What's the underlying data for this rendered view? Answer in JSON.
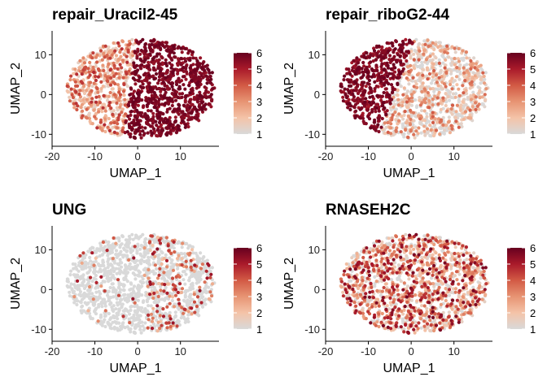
{
  "colors": {
    "scale_low": "#d9d9d9",
    "scale_stops": [
      "#d9d9d9",
      "#f4c3a8",
      "#e79473",
      "#d25a45",
      "#aa1a2a",
      "#67001f"
    ]
  },
  "chart_data": [
    {
      "type": "scatter",
      "title": "repair_Uracil2-45",
      "xlabel": "UMAP_1",
      "ylabel": "UMAP_2",
      "xlim": [
        -20,
        19
      ],
      "ylim": [
        -13,
        16
      ],
      "xticks": [
        -20,
        -10,
        0,
        10
      ],
      "yticks": [
        -10,
        0,
        10
      ],
      "legend": {
        "min": 1,
        "max": 6,
        "ticks": [
          1,
          2,
          3,
          4,
          5,
          6
        ],
        "placement": "right"
      },
      "pattern": "right-high",
      "description_values": {
        "left_region_level": 2.5,
        "right_region_level": 5.7
      }
    },
    {
      "type": "scatter",
      "title": "repair_riboG2-44",
      "xlabel": "UMAP_1",
      "ylabel": "UMAP_2",
      "xlim": [
        -20,
        19
      ],
      "ylim": [
        -13,
        16
      ],
      "xticks": [
        -20,
        -10,
        0,
        10
      ],
      "yticks": [
        -10,
        0,
        10
      ],
      "legend": {
        "min": 1,
        "max": 6,
        "ticks": [
          1,
          2,
          3,
          4,
          5,
          6
        ],
        "placement": "right"
      },
      "pattern": "left-high",
      "description_values": {
        "left_region_level": 5.7,
        "right_region_level": 2.0
      }
    },
    {
      "type": "scatter",
      "title": "UNG",
      "xlabel": "UMAP_1",
      "ylabel": "UMAP_2",
      "xlim": [
        -20,
        19
      ],
      "ylim": [
        -13,
        16
      ],
      "xticks": [
        -20,
        -10,
        0,
        10
      ],
      "yticks": [
        -10,
        0,
        10
      ],
      "legend": {
        "min": 1,
        "max": 6,
        "ticks": [
          1,
          2,
          3,
          4,
          5,
          6
        ],
        "placement": "right"
      },
      "pattern": "sparse-right",
      "description_values": {
        "left_region_level": 1.1,
        "right_region_level": 1.8
      }
    },
    {
      "type": "scatter",
      "title": "RNASEH2C",
      "xlabel": "UMAP_1",
      "ylabel": "UMAP_2",
      "xlim": [
        -20,
        19
      ],
      "ylim": [
        -13,
        16
      ],
      "xticks": [
        -20,
        -10,
        0,
        10
      ],
      "yticks": [
        -10,
        0,
        10
      ],
      "legend": {
        "min": 1,
        "max": 6,
        "ticks": [
          1,
          2,
          3,
          4,
          5,
          6
        ],
        "placement": "right"
      },
      "pattern": "scattered",
      "description_values": {
        "left_region_level": 2.3,
        "right_region_level": 2.3
      }
    }
  ]
}
